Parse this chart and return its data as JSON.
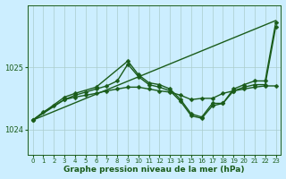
{
  "background_color": "#cceeff",
  "grid_color": "#aacccc",
  "line_color": "#1a5c1a",
  "marker_color": "#1a5c1a",
  "xlabel": "Graphe pression niveau de la mer (hPa)",
  "xlabel_fontsize": 6.5,
  "xlim": [
    -0.5,
    23.5
  ],
  "ylim": [
    1023.6,
    1026.0
  ],
  "yticks": [
    1024,
    1025
  ],
  "xticks": [
    0,
    1,
    2,
    3,
    4,
    5,
    6,
    7,
    8,
    9,
    10,
    11,
    12,
    13,
    14,
    15,
    16,
    17,
    18,
    19,
    20,
    21,
    22,
    23
  ],
  "series": [
    {
      "x": [
        0,
        23
      ],
      "y": [
        1024.15,
        1025.75
      ],
      "marker": null,
      "markersize": 0,
      "linewidth": 1.0
    },
    {
      "x": [
        0,
        1,
        2,
        3,
        4,
        5,
        6,
        7,
        8,
        9,
        10,
        11,
        12,
        13,
        14,
        15,
        16,
        17,
        18,
        19,
        20,
        21,
        22,
        23
      ],
      "y": [
        1024.15,
        1024.28,
        1024.38,
        1024.48,
        1024.52,
        1024.55,
        1024.58,
        1024.62,
        1024.65,
        1024.68,
        1024.68,
        1024.65,
        1024.62,
        1024.6,
        1024.55,
        1024.48,
        1024.5,
        1024.5,
        1024.58,
        1024.62,
        1024.65,
        1024.68,
        1024.7,
        1024.7
      ],
      "marker": "D",
      "markersize": 2.5,
      "linewidth": 1.0
    },
    {
      "x": [
        0,
        3,
        4,
        5,
        6,
        7,
        8,
        9,
        10,
        11,
        12,
        13,
        14,
        15,
        16,
        17,
        18,
        19,
        20,
        21,
        22,
        23
      ],
      "y": [
        1024.15,
        1024.48,
        1024.55,
        1024.6,
        1024.65,
        1024.7,
        1024.78,
        1025.05,
        1024.85,
        1024.72,
        1024.68,
        1024.62,
        1024.45,
        1024.22,
        1024.18,
        1024.38,
        1024.42,
        1024.62,
        1024.68,
        1024.72,
        1024.72,
        1025.65
      ],
      "marker": "D",
      "markersize": 2.5,
      "linewidth": 1.0
    },
    {
      "x": [
        0,
        3,
        4,
        6,
        9,
        10,
        11,
        12,
        13,
        14,
        15,
        16,
        17,
        18,
        19,
        20,
        21,
        22,
        23
      ],
      "y": [
        1024.15,
        1024.52,
        1024.58,
        1024.68,
        1025.1,
        1024.88,
        1024.75,
        1024.72,
        1024.65,
        1024.48,
        1024.25,
        1024.2,
        1024.42,
        1024.42,
        1024.65,
        1024.72,
        1024.78,
        1024.78,
        1025.72
      ],
      "marker": "D",
      "markersize": 2.5,
      "linewidth": 1.0
    }
  ]
}
